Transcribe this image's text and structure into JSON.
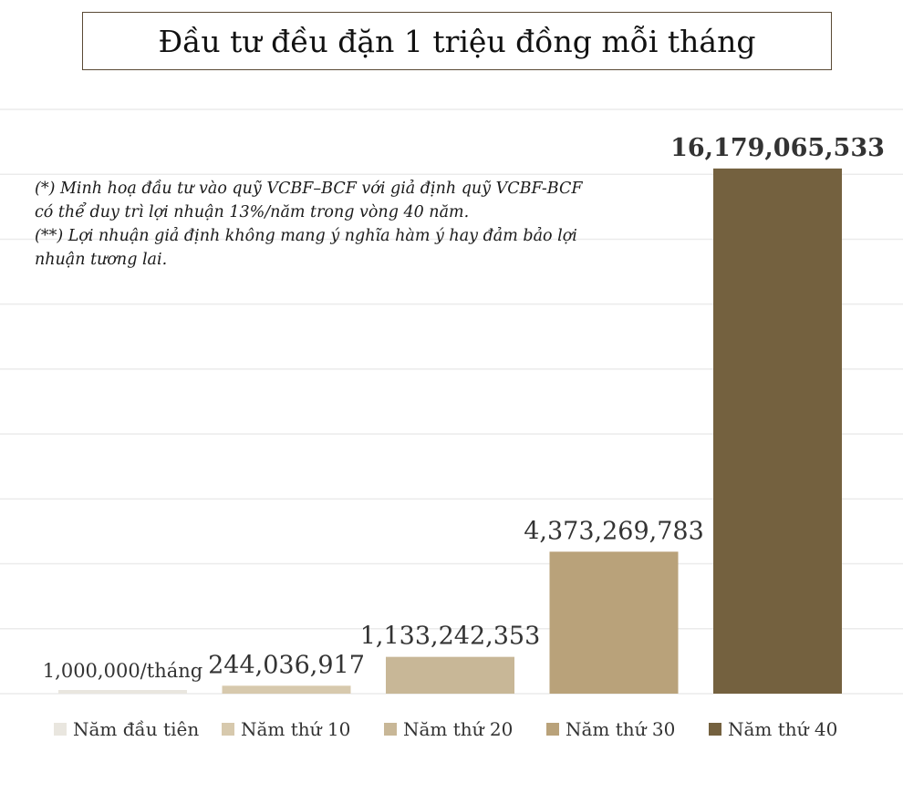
{
  "title": "Đầu tư đều đặn 1 triệu đồng mỗi tháng",
  "note": {
    "lines": [
      "(*) Minh hoạ đầu tư vào quỹ VCBF–BCF với giả định quỹ VCBF-BCF",
      "có thể duy trì lợi nhuận 13%/năm trong vòng 40 năm.",
      "(**) Lợi nhuận giả định không mang ý nghĩa hàm ý hay đảm bảo lợi",
      "nhuận tương lai."
    ]
  },
  "chart_data": {
    "type": "bar",
    "title": "Đầu tư đều đặn 1 triệu đồng mỗi tháng",
    "grid": true,
    "legend_position": "bottom",
    "ylim": [
      0,
      18000000000
    ],
    "series": [
      {
        "name": "Năm đầu tiên",
        "value": 12000000,
        "label": "1,000,000/tháng",
        "color": "#e9e6df"
      },
      {
        "name": "Năm thứ 10",
        "value": 244036917,
        "label": "244,036,917",
        "color": "#d7c9ad"
      },
      {
        "name": "Năm thứ 20",
        "value": 1133242353,
        "label": "1,133,242,353",
        "color": "#c8b797"
      },
      {
        "name": "Năm thứ 30",
        "value": 4373269783,
        "label": "4,373,269,783",
        "color": "#b9a27a"
      },
      {
        "name": "Năm thứ 40",
        "value": 16179065533,
        "label": "16,179,065,533",
        "color": "#74613f"
      }
    ]
  }
}
